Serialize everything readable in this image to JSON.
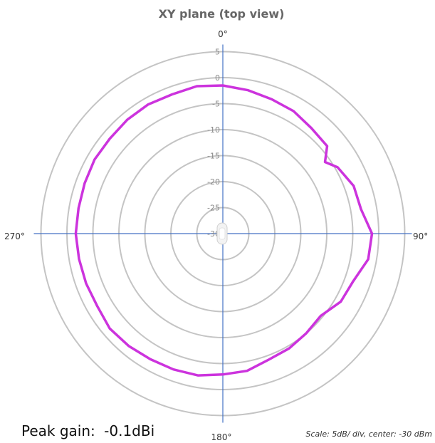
{
  "chart_data": {
    "type": "polar",
    "title": "XY plane (top view)",
    "angle_labels": {
      "top": "0°",
      "right": "90°",
      "bottom": "180°",
      "left": "270°"
    },
    "radial_ticks": [
      "5",
      "0",
      "-5",
      "-10",
      "-15",
      "-20",
      "-25",
      "-30"
    ],
    "rlim": [
      -30,
      5
    ],
    "grid": true,
    "series": [
      {
        "color": "#cc33dd",
        "angles": [
          0,
          10,
          20,
          30,
          40,
          50,
          55,
          60,
          70,
          80,
          90,
          100,
          110,
          120,
          130,
          140,
          150,
          160,
          170,
          180,
          190,
          200,
          210,
          220,
          230,
          240,
          250,
          260,
          270,
          280,
          290,
          300,
          310,
          320,
          330,
          340,
          350
        ],
        "values": [
          -1.5,
          -2.0,
          -2.5,
          -2.8,
          -3.5,
          -3.8,
          -6.0,
          -4.5,
          -3.2,
          -3.0,
          -1.3,
          -1.6,
          -3.3,
          -3.8,
          -5.4,
          -5.0,
          -4.5,
          -4.2,
          -3.2,
          -2.9,
          -2.3,
          -2.2,
          -2.1,
          -1.8,
          -1.6,
          -2.1,
          -2.0,
          -1.9,
          -1.7,
          -1.8,
          -1.7,
          -1.5,
          -1.6,
          -1.4,
          -1.3,
          -1.5,
          -1.2
        ]
      }
    ],
    "peak_gain": {
      "label": "Peak gain:",
      "value": "-0.1dBi"
    },
    "scale_note": "Scale: 5dB/ div, center: -30 dBm"
  }
}
